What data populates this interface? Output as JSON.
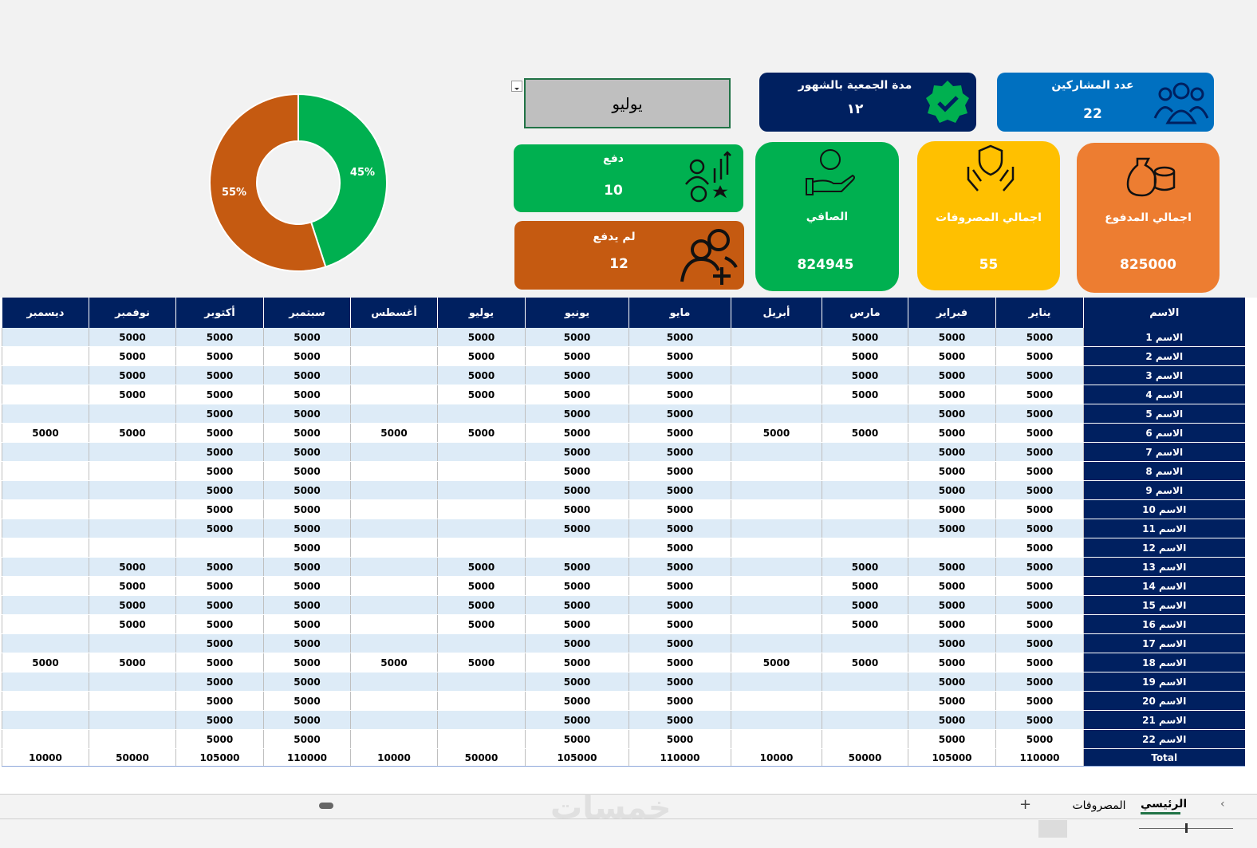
{
  "cards": {
    "participants": {
      "label": "عدد المشاركين",
      "value": 22
    },
    "duration": {
      "label": "مدة الجمعية بالشهور",
      "value": "١٢"
    },
    "month_select": "يوليو",
    "paid": {
      "label": "دفع",
      "value": 10
    },
    "unpaid": {
      "label": "لم يدفع",
      "value": 12
    },
    "net": {
      "label": "الصافي",
      "value": 824945
    },
    "expenses": {
      "label": "اجمالي المصروفات",
      "value": 55
    },
    "total_paid": {
      "label": "اجمالي المدفوع",
      "value": 825000
    }
  },
  "chart_data": {
    "type": "pie",
    "donut": true,
    "values": [
      45,
      55
    ],
    "value_labels": [
      "45%",
      "55%"
    ],
    "colors": [
      "#00b050",
      "#c55a11"
    ]
  },
  "table": {
    "columns": [
      "الاسم",
      "يناير",
      "فبراير",
      "مارس",
      "أبريل",
      "مايو",
      "يونيو",
      "يوليو",
      "أغسطس",
      "سبتمبر",
      "أكتوبر",
      "نوفمبر",
      "ديسمبر"
    ],
    "rows": [
      [
        "الاسم 1",
        5000,
        5000,
        5000,
        null,
        5000,
        5000,
        5000,
        null,
        5000,
        5000,
        5000,
        null
      ],
      [
        "الاسم 2",
        5000,
        5000,
        5000,
        null,
        5000,
        5000,
        5000,
        null,
        5000,
        5000,
        5000,
        null
      ],
      [
        "الاسم 3",
        5000,
        5000,
        5000,
        null,
        5000,
        5000,
        5000,
        null,
        5000,
        5000,
        5000,
        null
      ],
      [
        "الاسم 4",
        5000,
        5000,
        5000,
        null,
        5000,
        5000,
        5000,
        null,
        5000,
        5000,
        5000,
        null
      ],
      [
        "الاسم 5",
        5000,
        5000,
        null,
        null,
        5000,
        5000,
        null,
        null,
        5000,
        5000,
        null,
        null
      ],
      [
        "الاسم 6",
        5000,
        5000,
        5000,
        5000,
        5000,
        5000,
        5000,
        5000,
        5000,
        5000,
        5000,
        5000
      ],
      [
        "الاسم 7",
        5000,
        5000,
        null,
        null,
        5000,
        5000,
        null,
        null,
        5000,
        5000,
        null,
        null
      ],
      [
        "الاسم 8",
        5000,
        5000,
        null,
        null,
        5000,
        5000,
        null,
        null,
        5000,
        5000,
        null,
        null
      ],
      [
        "الاسم 9",
        5000,
        5000,
        null,
        null,
        5000,
        5000,
        null,
        null,
        5000,
        5000,
        null,
        null
      ],
      [
        "الاسم 10",
        5000,
        5000,
        null,
        null,
        5000,
        5000,
        null,
        null,
        5000,
        5000,
        null,
        null
      ],
      [
        "الاسم 11",
        5000,
        5000,
        null,
        null,
        5000,
        5000,
        null,
        null,
        5000,
        5000,
        null,
        null
      ],
      [
        "الاسم 12",
        5000,
        null,
        null,
        null,
        5000,
        null,
        null,
        null,
        5000,
        null,
        null,
        null
      ],
      [
        "الاسم 13",
        5000,
        5000,
        5000,
        null,
        5000,
        5000,
        5000,
        null,
        5000,
        5000,
        5000,
        null
      ],
      [
        "الاسم 14",
        5000,
        5000,
        5000,
        null,
        5000,
        5000,
        5000,
        null,
        5000,
        5000,
        5000,
        null
      ],
      [
        "الاسم 15",
        5000,
        5000,
        5000,
        null,
        5000,
        5000,
        5000,
        null,
        5000,
        5000,
        5000,
        null
      ],
      [
        "الاسم 16",
        5000,
        5000,
        5000,
        null,
        5000,
        5000,
        5000,
        null,
        5000,
        5000,
        5000,
        null
      ],
      [
        "الاسم 17",
        5000,
        5000,
        null,
        null,
        5000,
        5000,
        null,
        null,
        5000,
        5000,
        null,
        null
      ],
      [
        "الاسم 18",
        5000,
        5000,
        5000,
        5000,
        5000,
        5000,
        5000,
        5000,
        5000,
        5000,
        5000,
        5000
      ],
      [
        "الاسم 19",
        5000,
        5000,
        null,
        null,
        5000,
        5000,
        null,
        null,
        5000,
        5000,
        null,
        null
      ],
      [
        "الاسم 20",
        5000,
        5000,
        null,
        null,
        5000,
        5000,
        null,
        null,
        5000,
        5000,
        null,
        null
      ],
      [
        "الاسم 21",
        5000,
        5000,
        null,
        null,
        5000,
        5000,
        null,
        null,
        5000,
        5000,
        null,
        null
      ],
      [
        "الاسم 22",
        5000,
        5000,
        null,
        null,
        5000,
        5000,
        null,
        null,
        5000,
        5000,
        null,
        null
      ]
    ],
    "total_row": [
      "Total",
      110000,
      105000,
      50000,
      10000,
      110000,
      105000,
      50000,
      10000,
      110000,
      105000,
      50000,
      10000
    ]
  },
  "sheet_tabs": [
    "الرئيسي",
    "المصروفات"
  ],
  "watermark": "خمسات"
}
